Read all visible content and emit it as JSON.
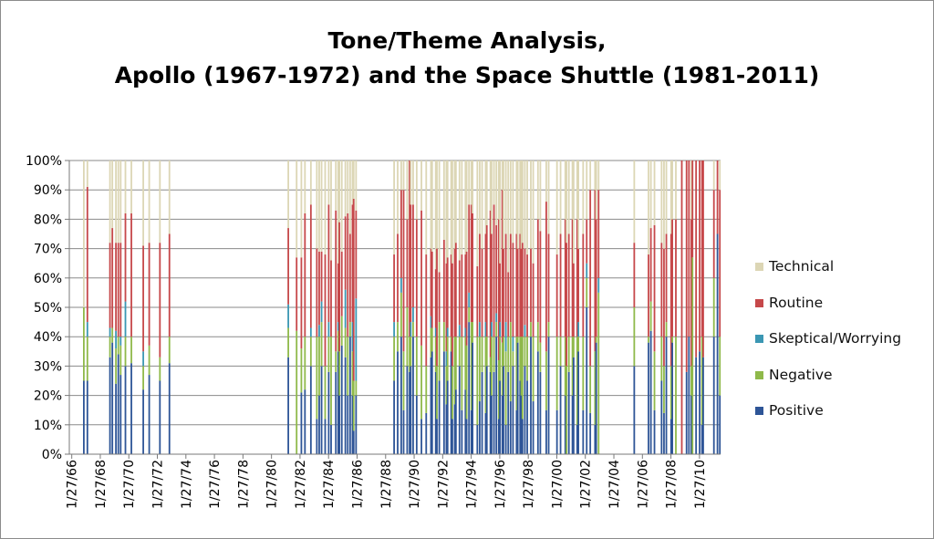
{
  "chart_data": {
    "type": "bar",
    "stacked": "percent",
    "title_lines": [
      "Tone/Theme Analysis,",
      "Apollo (1967-1972) and the Space Shuttle (1981-2011)"
    ],
    "xlabel": "",
    "ylabel": "",
    "ylim": [
      0,
      100
    ],
    "y_ticks": [
      "0%",
      "10%",
      "20%",
      "30%",
      "40%",
      "50%",
      "60%",
      "70%",
      "80%",
      "90%",
      "100%"
    ],
    "x_ticks": [
      "1/27/66",
      "1/27/68",
      "1/27/70",
      "1/27/72",
      "1/27/74",
      "1/27/76",
      "1/27/78",
      "1/27/80",
      "1/27/82",
      "1/27/84",
      "1/27/86",
      "1/27/88",
      "1/27/90",
      "1/27/92",
      "1/27/94",
      "1/27/96",
      "1/27/98",
      "1/27/00",
      "1/27/02",
      "1/27/04",
      "1/27/06",
      "1/27/08",
      "1/27/10"
    ],
    "grid": true,
    "legend_position": "right",
    "series_names": [
      "Positive",
      "Negative",
      "Skeptical/Worrying",
      "Routine",
      "Technical"
    ],
    "series_colors": [
      "#2e5597",
      "#8fb94a",
      "#3b97b3",
      "#c6484a",
      "#dcd6b5"
    ],
    "legend_order": [
      "Technical",
      "Routine",
      "Skeptical/Worrying",
      "Negative",
      "Positive"
    ],
    "bars": [
      {
        "x": "1966-12",
        "values": [
          25,
          25,
          0,
          0,
          50
        ]
      },
      {
        "x": "1967-03",
        "values": [
          25,
          15,
          5,
          46,
          9
        ]
      },
      {
        "x": "1968-10",
        "values": [
          33,
          7,
          3,
          29,
          28
        ]
      },
      {
        "x": "1968-12",
        "values": [
          38,
          5,
          0,
          34,
          23
        ]
      },
      {
        "x": "1969-03",
        "values": [
          24,
          12,
          6,
          30,
          28
        ]
      },
      {
        "x": "1969-05",
        "values": [
          34,
          6,
          0,
          32,
          28
        ]
      },
      {
        "x": "1969-07",
        "values": [
          27,
          10,
          3,
          32,
          28
        ]
      },
      {
        "x": "1969-11",
        "values": [
          30,
          10,
          12,
          30,
          18
        ]
      },
      {
        "x": "1970-04",
        "values": [
          31,
          9,
          0,
          42,
          18
        ]
      },
      {
        "x": "1971-02",
        "values": [
          22,
          8,
          5,
          36,
          29
        ]
      },
      {
        "x": "1971-07",
        "values": [
          27,
          10,
          0,
          35,
          28
        ]
      },
      {
        "x": "1972-04",
        "values": [
          25,
          8,
          0,
          39,
          28
        ]
      },
      {
        "x": "1972-12",
        "values": [
          31,
          9,
          0,
          35,
          25
        ]
      },
      {
        "x": "1981-04",
        "values": [
          33,
          10,
          8,
          26,
          23
        ]
      },
      {
        "x": "1981-11",
        "values": [
          0,
          42,
          0,
          25,
          33
        ]
      },
      {
        "x": "1982-03",
        "values": [
          21,
          15,
          0,
          31,
          33
        ]
      },
      {
        "x": "1982-06",
        "values": [
          22,
          18,
          0,
          42,
          18
        ]
      },
      {
        "x": "1982-11",
        "values": [
          30,
          10,
          3,
          42,
          15
        ]
      },
      {
        "x": "1983-04",
        "values": [
          12,
          28,
          0,
          30,
          30
        ]
      },
      {
        "x": "1983-06",
        "values": [
          20,
          20,
          4,
          25,
          31
        ]
      },
      {
        "x": "1983-08",
        "values": [
          30,
          15,
          7,
          17,
          31
        ]
      },
      {
        "x": "1983-11",
        "values": [
          12,
          18,
          0,
          38,
          32
        ]
      },
      {
        "x": "1984-02",
        "values": [
          28,
          12,
          5,
          40,
          15
        ]
      },
      {
        "x": "1984-04",
        "values": [
          10,
          30,
          0,
          26,
          34
        ]
      },
      {
        "x": "1984-08",
        "values": [
          28,
          7,
          0,
          48,
          17
        ]
      },
      {
        "x": "1984-10",
        "values": [
          35,
          7,
          3,
          20,
          35
        ]
      },
      {
        "x": "1984-11",
        "values": [
          20,
          15,
          0,
          44,
          21
        ]
      },
      {
        "x": "1985-01",
        "values": [
          37,
          10,
          0,
          22,
          31
        ]
      },
      {
        "x": "1985-04",
        "values": [
          33,
          10,
          13,
          25,
          19
        ]
      },
      {
        "x": "1985-06",
        "values": [
          20,
          20,
          0,
          42,
          18
        ]
      },
      {
        "x": "1985-08",
        "values": [
          40,
          5,
          0,
          30,
          25
        ]
      },
      {
        "x": "1985-10",
        "values": [
          20,
          15,
          10,
          40,
          15
        ]
      },
      {
        "x": "1985-11",
        "values": [
          8,
          17,
          0,
          62,
          13
        ]
      },
      {
        "x": "1986-01",
        "values": [
          20,
          5,
          28,
          30,
          17
        ]
      },
      {
        "x": "1988-09",
        "values": [
          25,
          15,
          5,
          23,
          32
        ]
      },
      {
        "x": "1988-12",
        "values": [
          35,
          10,
          0,
          30,
          25
        ]
      },
      {
        "x": "1989-03",
        "values": [
          40,
          15,
          5,
          30,
          10
        ]
      },
      {
        "x": "1989-05",
        "values": [
          15,
          20,
          0,
          55,
          10
        ]
      },
      {
        "x": "1989-08",
        "values": [
          30,
          20,
          0,
          30,
          20
        ]
      },
      {
        "x": "1989-10",
        "values": [
          28,
          12,
          0,
          60,
          0
        ]
      },
      {
        "x": "1989-11",
        "values": [
          30,
          10,
          5,
          40,
          15
        ]
      },
      {
        "x": "1990-01",
        "values": [
          40,
          5,
          5,
          35,
          15
        ]
      },
      {
        "x": "1990-04",
        "values": [
          20,
          20,
          0,
          40,
          20
        ]
      },
      {
        "x": "1990-08",
        "values": [
          12,
          25,
          0,
          46,
          17
        ]
      },
      {
        "x": "1990-12",
        "values": [
          14,
          16,
          0,
          38,
          32
        ]
      },
      {
        "x": "1991-04",
        "values": [
          33,
          10,
          4,
          23,
          30
        ]
      },
      {
        "x": "1991-05",
        "values": [
          35,
          8,
          0,
          26,
          31
        ]
      },
      {
        "x": "1991-08",
        "values": [
          28,
          12,
          3,
          20,
          37
        ]
      },
      {
        "x": "1991-09",
        "values": [
          12,
          18,
          0,
          40,
          30
        ]
      },
      {
        "x": "1991-11",
        "values": [
          25,
          20,
          0,
          17,
          38
        ]
      },
      {
        "x": "1992-03",
        "values": [
          35,
          10,
          0,
          28,
          27
        ]
      },
      {
        "x": "1992-05",
        "values": [
          17,
          13,
          5,
          30,
          35
        ]
      },
      {
        "x": "1992-06",
        "values": [
          25,
          15,
          3,
          24,
          33
        ]
      },
      {
        "x": "1992-09",
        "values": [
          35,
          5,
          0,
          28,
          32
        ]
      },
      {
        "x": "1992-10",
        "values": [
          12,
          18,
          0,
          35,
          35
        ]
      },
      {
        "x": "1992-12",
        "values": [
          17,
          23,
          0,
          30,
          30
        ]
      },
      {
        "x": "1993-01",
        "values": [
          22,
          18,
          0,
          32,
          28
        ]
      },
      {
        "x": "1993-04",
        "values": [
          30,
          10,
          4,
          22,
          34
        ]
      },
      {
        "x": "1993-06",
        "values": [
          15,
          25,
          0,
          28,
          32
        ]
      },
      {
        "x": "1993-09",
        "values": [
          22,
          18,
          3,
          25,
          32
        ]
      },
      {
        "x": "1993-10",
        "values": [
          12,
          25,
          0,
          32,
          31
        ]
      },
      {
        "x": "1993-12",
        "values": [
          45,
          5,
          5,
          30,
          15
        ]
      },
      {
        "x": "1994-02",
        "values": [
          15,
          30,
          0,
          40,
          15
        ]
      },
      {
        "x": "1994-03",
        "values": [
          38,
          7,
          0,
          37,
          18
        ]
      },
      {
        "x": "1994-07",
        "values": [
          10,
          30,
          0,
          24,
          36
        ]
      },
      {
        "x": "1994-09",
        "values": [
          18,
          22,
          5,
          30,
          25
        ]
      },
      {
        "x": "1994-11",
        "values": [
          28,
          12,
          0,
          30,
          30
        ]
      },
      {
        "x": "1995-02",
        "values": [
          14,
          26,
          5,
          30,
          25
        ]
      },
      {
        "x": "1995-03",
        "values": [
          30,
          10,
          0,
          38,
          22
        ]
      },
      {
        "x": "1995-06",
        "values": [
          28,
          5,
          0,
          50,
          17
        ]
      },
      {
        "x": "1995-07",
        "values": [
          20,
          20,
          5,
          30,
          25
        ]
      },
      {
        "x": "1995-09",
        "values": [
          28,
          12,
          0,
          45,
          15
        ]
      },
      {
        "x": "1995-11",
        "values": [
          40,
          5,
          3,
          30,
          22
        ]
      },
      {
        "x": "1996-01",
        "values": [
          12,
          20,
          0,
          48,
          20
        ]
      },
      {
        "x": "1996-02",
        "values": [
          25,
          15,
          5,
          20,
          35
        ]
      },
      {
        "x": "1996-04",
        "values": [
          20,
          18,
          0,
          52,
          10
        ]
      },
      {
        "x": "1996-05",
        "values": [
          30,
          10,
          0,
          30,
          30
        ]
      },
      {
        "x": "1996-07",
        "values": [
          10,
          25,
          10,
          30,
          25
        ]
      },
      {
        "x": "1996-09",
        "values": [
          28,
          12,
          0,
          22,
          38
        ]
      },
      {
        "x": "1996-11",
        "values": [
          18,
          27,
          0,
          30,
          25
        ]
      },
      {
        "x": "1997-01",
        "values": [
          30,
          5,
          5,
          32,
          28
        ]
      },
      {
        "x": "1997-04",
        "values": [
          15,
          25,
          0,
          35,
          25
        ]
      },
      {
        "x": "1997-05",
        "values": [
          38,
          2,
          0,
          30,
          30
        ]
      },
      {
        "x": "1997-07",
        "values": [
          25,
          15,
          0,
          35,
          25
        ]
      },
      {
        "x": "1997-08",
        "values": [
          20,
          20,
          0,
          30,
          30
        ]
      },
      {
        "x": "1997-09",
        "values": [
          12,
          28,
          0,
          32,
          28
        ]
      },
      {
        "x": "1997-11",
        "values": [
          30,
          10,
          4,
          26,
          30
        ]
      },
      {
        "x": "1998-01",
        "values": [
          25,
          15,
          0,
          28,
          32
        ]
      },
      {
        "x": "1998-04",
        "values": [
          40,
          5,
          0,
          25,
          30
        ]
      },
      {
        "x": "1998-06",
        "values": [
          18,
          22,
          0,
          25,
          35
        ]
      },
      {
        "x": "1998-10",
        "values": [
          35,
          10,
          0,
          35,
          20
        ]
      },
      {
        "x": "1998-12",
        "values": [
          28,
          10,
          0,
          38,
          24
        ]
      },
      {
        "x": "1999-05",
        "values": [
          15,
          20,
          0,
          51,
          14
        ]
      },
      {
        "x": "1999-07",
        "values": [
          40,
          5,
          0,
          30,
          25
        ]
      },
      {
        "x": "2000-02",
        "values": [
          15,
          25,
          0,
          28,
          32
        ]
      },
      {
        "x": "2000-05",
        "values": [
          30,
          10,
          0,
          35,
          25
        ]
      },
      {
        "x": "2000-09",
        "values": [
          20,
          20,
          0,
          40,
          20
        ]
      },
      {
        "x": "2000-10",
        "values": [
          0,
          30,
          0,
          42,
          28
        ]
      },
      {
        "x": "2000-12",
        "values": [
          28,
          12,
          0,
          35,
          25
        ]
      },
      {
        "x": "2001-03",
        "values": [
          20,
          20,
          0,
          40,
          20
        ]
      },
      {
        "x": "2001-04",
        "values": [
          33,
          7,
          0,
          25,
          35
        ]
      },
      {
        "x": "2001-07",
        "values": [
          10,
          30,
          0,
          40,
          20
        ]
      },
      {
        "x": "2001-08",
        "values": [
          35,
          5,
          5,
          25,
          30
        ]
      },
      {
        "x": "2001-12",
        "values": [
          15,
          25,
          0,
          35,
          25
        ]
      },
      {
        "x": "2002-03",
        "values": [
          50,
          10,
          5,
          15,
          20
        ]
      },
      {
        "x": "2002-06",
        "values": [
          14,
          16,
          0,
          60,
          10
        ]
      },
      {
        "x": "2002-10",
        "values": [
          10,
          25,
          0,
          55,
          10
        ]
      },
      {
        "x": "2002-11",
        "values": [
          38,
          2,
          0,
          40,
          20
        ]
      },
      {
        "x": "2003-01",
        "values": [
          0,
          55,
          5,
          30,
          10
        ]
      },
      {
        "x": "2005-07",
        "values": [
          30,
          20,
          0,
          22,
          28
        ]
      },
      {
        "x": "2006-07",
        "values": [
          38,
          2,
          0,
          28,
          32
        ]
      },
      {
        "x": "2006-09",
        "values": [
          42,
          10,
          0,
          25,
          23
        ]
      },
      {
        "x": "2006-12",
        "values": [
          15,
          20,
          0,
          43,
          22
        ]
      },
      {
        "x": "2007-06",
        "values": [
          25,
          15,
          0,
          32,
          28
        ]
      },
      {
        "x": "2007-08",
        "values": [
          14,
          16,
          0,
          40,
          30
        ]
      },
      {
        "x": "2007-10",
        "values": [
          40,
          5,
          0,
          30,
          25
        ]
      },
      {
        "x": "2008-02",
        "values": [
          12,
          18,
          0,
          45,
          25
        ]
      },
      {
        "x": "2008-03",
        "values": [
          38,
          2,
          0,
          40,
          20
        ]
      },
      {
        "x": "2008-06",
        "values": [
          0,
          40,
          0,
          40,
          20
        ]
      },
      {
        "x": "2008-11",
        "values": [
          0,
          0,
          0,
          100,
          0
        ]
      },
      {
        "x": "2009-03",
        "values": [
          28,
          0,
          0,
          72,
          0
        ]
      },
      {
        "x": "2009-05",
        "values": [
          40,
          0,
          0,
          60,
          0
        ]
      },
      {
        "x": "2009-07",
        "values": [
          20,
          10,
          0,
          50,
          20
        ]
      },
      {
        "x": "2009-08",
        "values": [
          0,
          67,
          0,
          33,
          0
        ]
      },
      {
        "x": "2009-11",
        "values": [
          33,
          0,
          0,
          67,
          0
        ]
      },
      {
        "x": "2010-02",
        "values": [
          35,
          0,
          0,
          65,
          0
        ]
      },
      {
        "x": "2010-04",
        "values": [
          10,
          30,
          0,
          60,
          0
        ]
      },
      {
        "x": "2010-05",
        "values": [
          33,
          0,
          0,
          67,
          0
        ]
      },
      {
        "x": "2011-02",
        "values": [
          40,
          20,
          0,
          30,
          10
        ]
      },
      {
        "x": "2011-05",
        "values": [
          75,
          0,
          0,
          25,
          0
        ]
      },
      {
        "x": "2011-07",
        "values": [
          20,
          20,
          0,
          50,
          10
        ]
      }
    ]
  }
}
